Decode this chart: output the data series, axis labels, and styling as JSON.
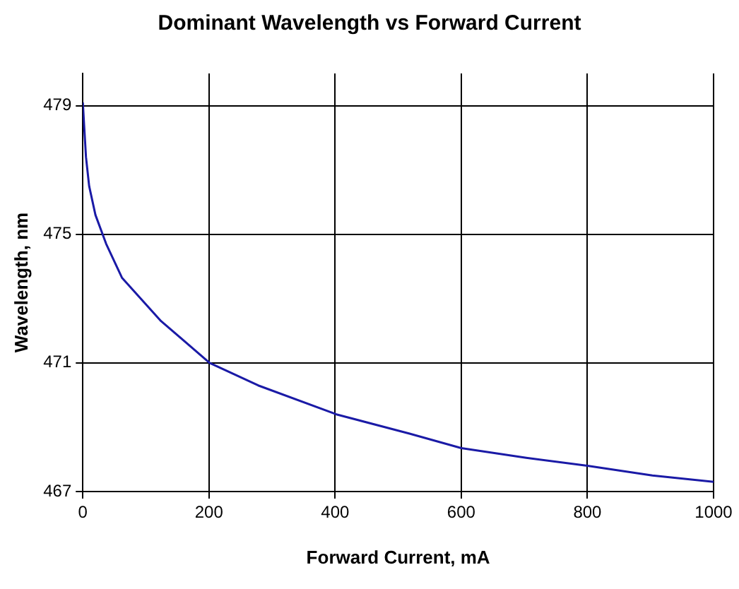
{
  "chart_data": {
    "type": "line",
    "title": "Dominant Wavelength vs Forward Current",
    "xlabel": "Forward Current, mA",
    "ylabel": "Wavelength, nm",
    "x": [
      0,
      2,
      5,
      10,
      20,
      37,
      62,
      124,
      201,
      278,
      402,
      518,
      600,
      703,
      800,
      903,
      1000
    ],
    "series": [
      {
        "color": "#1a1aa6",
        "values": [
          479.1,
          478.4,
          477.4,
          476.5,
          475.6,
          474.7,
          473.65,
          472.3,
          471.0,
          470.3,
          469.4,
          468.8,
          468.35,
          468.05,
          467.8,
          467.5,
          467.3
        ]
      }
    ],
    "xlim": [
      0,
      1000
    ],
    "xticks": [
      0,
      200,
      400,
      600,
      800,
      1000
    ],
    "ylim": [
      467,
      480
    ],
    "yticks": [
      467,
      471,
      475,
      479
    ],
    "grid": true,
    "marker": "none",
    "line_style": "solid",
    "legend": false
  }
}
